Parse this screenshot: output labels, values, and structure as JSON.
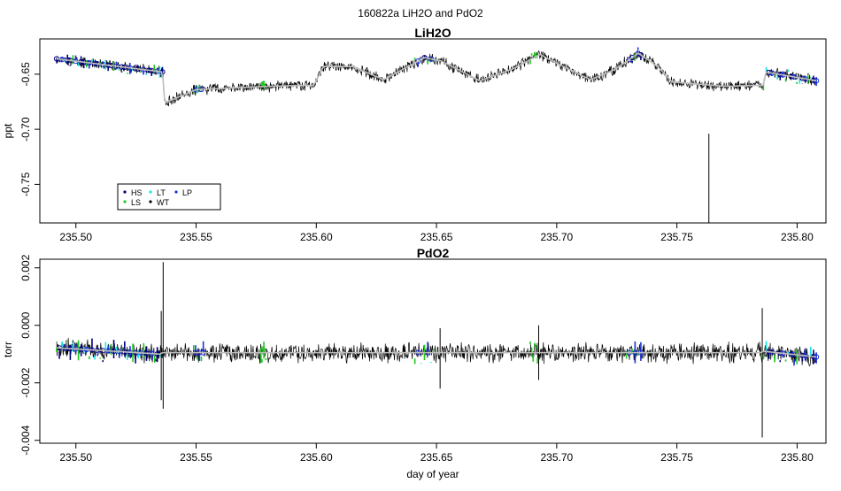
{
  "figure_title": "160822a   LiH2O and PdO2",
  "colors": {
    "raw": "#000000",
    "smooth": "#bdbdbd",
    "HS": "#000080",
    "LS": "#1ec81e",
    "LT": "#19e6e6",
    "WT": "#000000",
    "LP": "#1e32dc"
  },
  "chart_data": [
    {
      "type": "line",
      "title": "LiH2O",
      "xlabel": "",
      "ylabel": "ppt",
      "xlim": [
        235.485,
        235.812
      ],
      "ylim": [
        -0.785,
        -0.618
      ],
      "x_ticks": [
        235.5,
        235.55,
        235.6,
        235.65,
        235.7,
        235.75,
        235.8
      ],
      "x_tick_labels": [
        "235.50",
        "235.55",
        "235.60",
        "235.65",
        "235.70",
        "235.75",
        "235.80"
      ],
      "y_ticks": [
        -0.65,
        -0.7,
        -0.75
      ],
      "y_tick_labels": [
        "-0.65",
        "-0.70",
        "-0.75"
      ],
      "grid": false,
      "legend": {
        "placement": "bottom-left",
        "entries": [
          {
            "label": "HS",
            "color_key": "HS"
          },
          {
            "label": "LS",
            "color_key": "LS"
          },
          {
            "label": "LT",
            "color_key": "LT"
          },
          {
            "label": "WT",
            "color_key": "WT"
          },
          {
            "label": "LP",
            "color_key": "LP"
          }
        ]
      },
      "series_names": [
        "HS",
        "LS",
        "LT",
        "WT",
        "LP"
      ],
      "noise_amplitude": 0.006,
      "trend": [
        {
          "x": 235.492,
          "y": -0.636
        },
        {
          "x": 235.536,
          "y": -0.648
        },
        {
          "x": 235.537,
          "y": -0.676
        },
        {
          "x": 235.55,
          "y": -0.664
        },
        {
          "x": 235.58,
          "y": -0.661
        },
        {
          "x": 235.599,
          "y": -0.66
        },
        {
          "x": 235.603,
          "y": -0.643
        },
        {
          "x": 235.615,
          "y": -0.643
        },
        {
          "x": 235.628,
          "y": -0.655
        },
        {
          "x": 235.645,
          "y": -0.635
        },
        {
          "x": 235.652,
          "y": -0.638
        },
        {
          "x": 235.668,
          "y": -0.656
        },
        {
          "x": 235.682,
          "y": -0.645
        },
        {
          "x": 235.693,
          "y": -0.632
        },
        {
          "x": 235.7,
          "y": -0.64
        },
        {
          "x": 235.714,
          "y": -0.655
        },
        {
          "x": 235.724,
          "y": -0.646
        },
        {
          "x": 235.734,
          "y": -0.631
        },
        {
          "x": 235.742,
          "y": -0.643
        },
        {
          "x": 235.748,
          "y": -0.657
        },
        {
          "x": 235.77,
          "y": -0.661
        },
        {
          "x": 235.786,
          "y": -0.66
        },
        {
          "x": 235.787,
          "y": -0.648
        },
        {
          "x": 235.808,
          "y": -0.656
        }
      ],
      "spikes": [
        {
          "x": 235.7633,
          "y_min": -0.785,
          "y_max": -0.704
        }
      ],
      "marker_segments": [
        {
          "from": 235.492,
          "to": 235.536,
          "cycle": [
            "HS",
            "LS",
            "LP",
            "LT",
            "HS"
          ]
        },
        {
          "from": 235.549,
          "to": 235.553,
          "cycle": [
            "LS",
            "LP",
            "LT"
          ]
        },
        {
          "from": 235.577,
          "to": 235.579,
          "cycle": [
            "LS"
          ]
        },
        {
          "from": 235.641,
          "to": 235.649,
          "cycle": [
            "LS",
            "LP",
            "LT",
            "HS"
          ]
        },
        {
          "from": 235.689,
          "to": 235.692,
          "cycle": [
            "LS"
          ]
        },
        {
          "from": 235.729,
          "to": 235.735,
          "cycle": [
            "LS",
            "LP",
            "HS"
          ]
        },
        {
          "from": 235.786,
          "to": 235.808,
          "cycle": [
            "LS",
            "LT",
            "HS",
            "LP"
          ]
        }
      ]
    },
    {
      "type": "line",
      "title": "PdO2",
      "xlabel": "day of year",
      "ylabel": "torr",
      "xlim": [
        235.485,
        235.812
      ],
      "ylim": [
        -0.0041,
        0.0023
      ],
      "x_ticks": [
        235.5,
        235.55,
        235.6,
        235.65,
        235.7,
        235.75,
        235.8
      ],
      "x_tick_labels": [
        "235.50",
        "235.55",
        "235.60",
        "235.65",
        "235.70",
        "235.75",
        "235.80"
      ],
      "y_ticks": [
        0.002,
        0.0,
        -0.002,
        -0.004
      ],
      "y_tick_labels": [
        "0.002",
        "0.000",
        "-0.002",
        "-0.004"
      ],
      "grid": false,
      "noise_amplitude": 0.0004,
      "trend": [
        {
          "x": 235.492,
          "y": -0.00078
        },
        {
          "x": 235.535,
          "y": -0.001
        },
        {
          "x": 235.536,
          "y": -0.00095
        },
        {
          "x": 235.785,
          "y": -0.00095
        },
        {
          "x": 235.786,
          "y": -0.0009
        },
        {
          "x": 235.808,
          "y": -0.0011
        }
      ],
      "spikes": [
        {
          "x": 235.5363,
          "y_min": -0.0029,
          "y_max": 0.0022
        },
        {
          "x": 235.5355,
          "y_min": -0.0026,
          "y_max": 0.0005
        },
        {
          "x": 235.6515,
          "y_min": -0.0022,
          "y_max": -0.0001
        },
        {
          "x": 235.6925,
          "y_min": -0.0019,
          "y_max": 0.0
        },
        {
          "x": 235.7855,
          "y_min": -0.0039,
          "y_max": 0.0006
        }
      ],
      "marker_segments": [
        {
          "from": 235.492,
          "to": 235.535,
          "cycle": [
            "LS",
            "HS",
            "LT",
            "LP"
          ]
        },
        {
          "from": 235.549,
          "to": 235.553,
          "cycle": [
            "LS",
            "LP"
          ]
        },
        {
          "from": 235.577,
          "to": 235.579,
          "cycle": [
            "LS"
          ]
        },
        {
          "from": 235.641,
          "to": 235.649,
          "cycle": [
            "LS",
            "LP",
            "LT"
          ]
        },
        {
          "from": 235.689,
          "to": 235.692,
          "cycle": [
            "LS"
          ]
        },
        {
          "from": 235.729,
          "to": 235.735,
          "cycle": [
            "LS",
            "LP"
          ]
        },
        {
          "from": 235.786,
          "to": 235.808,
          "cycle": [
            "LS",
            "LT",
            "HS",
            "LP"
          ]
        }
      ]
    }
  ]
}
